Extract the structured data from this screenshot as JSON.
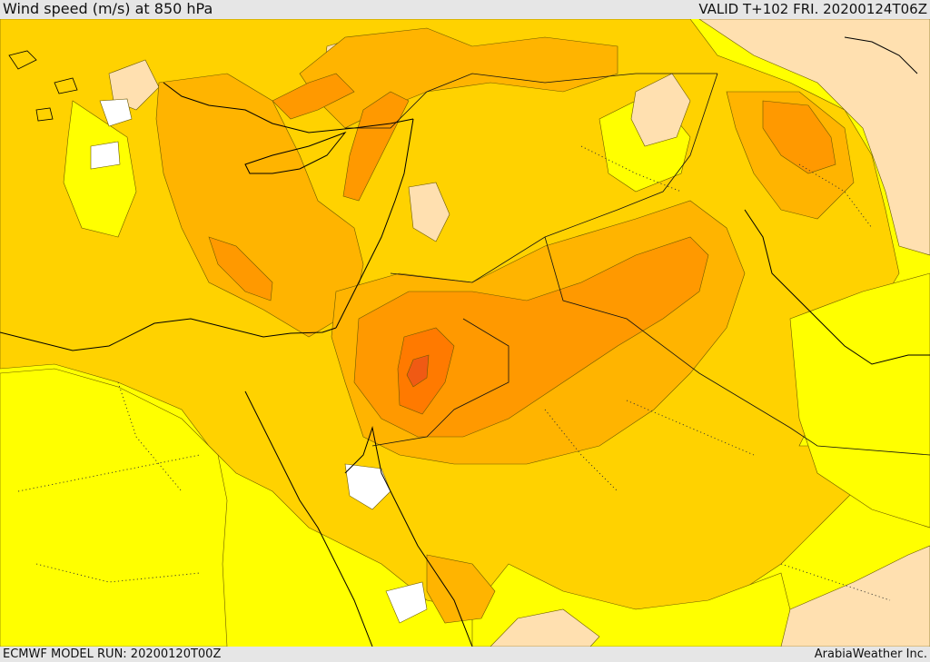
{
  "header": {
    "title": "Wind speed (m/s) at 850 hPa",
    "valid": "VALID T+102 FRI. 20200124T06Z"
  },
  "footer": {
    "model_run": "ECMWF MODEL RUN: 20200120T00Z",
    "credit": "ArabiaWeather Inc."
  },
  "palette": {
    "lt4": "#ffffff",
    "b4_8": "#ffe0b0",
    "b8_12": "#ffff00",
    "b12_16": "#ffd200",
    "b16_20": "#ffb400",
    "b20_24": "#ff9900",
    "b24_28": "#ff7a00",
    "b28_32": "#f05a14",
    "coast": "#000000"
  }
}
